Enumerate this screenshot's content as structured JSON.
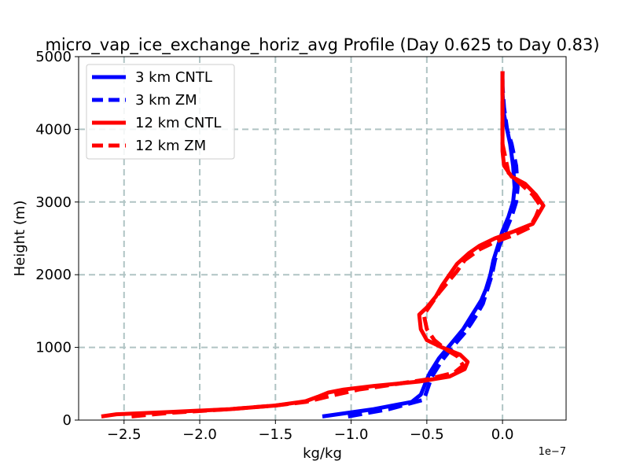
{
  "chart_data": {
    "type": "line",
    "title": "micro_vap_ice_exchange_horiz_avg Profile (Day 0.625 to Day 0.83)",
    "xlabel": "kg/kg",
    "ylabel": "Height (m)",
    "x_offset_label": "1e−7",
    "xlim": [
      -2.8,
      0.42
    ],
    "ylim": [
      0,
      5000
    ],
    "x_ticks": [
      -2.5,
      -2.0,
      -1.5,
      -1.0,
      -0.5,
      0.0
    ],
    "x_tick_labels": [
      "−2.5",
      "−2.0",
      "−1.5",
      "−1.0",
      "−0.5",
      "0.0"
    ],
    "y_ticks": [
      0,
      1000,
      2000,
      3000,
      4000,
      5000
    ],
    "y_tick_labels": [
      "0",
      "1000",
      "2000",
      "3000",
      "4000",
      "5000"
    ],
    "grid": true,
    "legend_position": "upper-left",
    "series": [
      {
        "name": "3 km CNTL",
        "color": "#0000ff",
        "dash": "solid",
        "points": [
          [
            -1.19,
            50
          ],
          [
            -0.85,
            150
          ],
          [
            -0.6,
            250
          ],
          [
            -0.54,
            350
          ],
          [
            -0.52,
            450
          ],
          [
            -0.5,
            560
          ],
          [
            -0.48,
            650
          ],
          [
            -0.45,
            750
          ],
          [
            -0.42,
            850
          ],
          [
            -0.38,
            950
          ],
          [
            -0.34,
            1050
          ],
          [
            -0.3,
            1150
          ],
          [
            -0.26,
            1250
          ],
          [
            -0.23,
            1350
          ],
          [
            -0.2,
            1450
          ],
          [
            -0.17,
            1550
          ],
          [
            -0.14,
            1650
          ],
          [
            -0.11,
            1800
          ],
          [
            -0.08,
            2000
          ],
          [
            -0.06,
            2200
          ],
          [
            -0.03,
            2400
          ],
          [
            0.0,
            2600
          ],
          [
            0.04,
            2800
          ],
          [
            0.07,
            3000
          ],
          [
            0.08,
            3200
          ],
          [
            0.07,
            3500
          ],
          [
            0.05,
            3800
          ],
          [
            0.03,
            4000
          ],
          [
            0.01,
            4200
          ],
          [
            0.0,
            4500
          ],
          [
            0.0,
            4800
          ]
        ]
      },
      {
        "name": "3 km ZM",
        "color": "#0000ff",
        "dash": "dashed",
        "points": [
          [
            -1.02,
            50
          ],
          [
            -0.75,
            150
          ],
          [
            -0.52,
            280
          ],
          [
            -0.5,
            400
          ],
          [
            -0.48,
            520
          ],
          [
            -0.46,
            620
          ],
          [
            -0.43,
            720
          ],
          [
            -0.4,
            820
          ],
          [
            -0.35,
            950
          ],
          [
            -0.3,
            1080
          ],
          [
            -0.25,
            1200
          ],
          [
            -0.21,
            1320
          ],
          [
            -0.17,
            1450
          ],
          [
            -0.13,
            1600
          ],
          [
            -0.1,
            1800
          ],
          [
            -0.07,
            2000
          ],
          [
            -0.05,
            2200
          ],
          [
            -0.02,
            2400
          ],
          [
            0.02,
            2600
          ],
          [
            0.06,
            2800
          ],
          [
            0.09,
            3000
          ],
          [
            0.1,
            3200
          ],
          [
            0.09,
            3500
          ],
          [
            0.06,
            3800
          ],
          [
            0.03,
            4000
          ],
          [
            0.01,
            4300
          ],
          [
            0.0,
            4600
          ],
          [
            0.0,
            4800
          ]
        ]
      },
      {
        "name": "12 km CNTL",
        "color": "#ff0000",
        "dash": "solid",
        "points": [
          [
            -2.65,
            50
          ],
          [
            -2.55,
            80
          ],
          [
            -2.2,
            110
          ],
          [
            -1.8,
            150
          ],
          [
            -1.5,
            200
          ],
          [
            -1.3,
            260
          ],
          [
            -1.22,
            320
          ],
          [
            -1.15,
            380
          ],
          [
            -1.05,
            420
          ],
          [
            -0.85,
            470
          ],
          [
            -0.55,
            530
          ],
          [
            -0.35,
            600
          ],
          [
            -0.25,
            700
          ],
          [
            -0.23,
            800
          ],
          [
            -0.28,
            900
          ],
          [
            -0.4,
            1000
          ],
          [
            -0.5,
            1100
          ],
          [
            -0.54,
            1250
          ],
          [
            -0.55,
            1450
          ],
          [
            -0.5,
            1550
          ],
          [
            -0.44,
            1700
          ],
          [
            -0.4,
            1850
          ],
          [
            -0.35,
            2000
          ],
          [
            -0.3,
            2150
          ],
          [
            -0.22,
            2300
          ],
          [
            -0.15,
            2400
          ],
          [
            -0.05,
            2500
          ],
          [
            0.08,
            2600
          ],
          [
            0.2,
            2700
          ],
          [
            0.27,
            2950
          ],
          [
            0.22,
            3100
          ],
          [
            0.15,
            3250
          ],
          [
            0.06,
            3350
          ],
          [
            0.01,
            3500
          ],
          [
            0.0,
            3700
          ],
          [
            0.0,
            4000
          ],
          [
            0.0,
            4400
          ],
          [
            0.0,
            4800
          ]
        ]
      },
      {
        "name": "12 km ZM",
        "color": "#ff0000",
        "dash": "dashed",
        "points": [
          [
            -2.45,
            50
          ],
          [
            -2.2,
            100
          ],
          [
            -1.8,
            150
          ],
          [
            -1.5,
            200
          ],
          [
            -1.3,
            250
          ],
          [
            -1.1,
            350
          ],
          [
            -0.95,
            420
          ],
          [
            -0.75,
            480
          ],
          [
            -0.5,
            560
          ],
          [
            -0.32,
            650
          ],
          [
            -0.26,
            750
          ],
          [
            -0.3,
            880
          ],
          [
            -0.38,
            980
          ],
          [
            -0.45,
            1100
          ],
          [
            -0.5,
            1250
          ],
          [
            -0.52,
            1450
          ],
          [
            -0.47,
            1600
          ],
          [
            -0.42,
            1750
          ],
          [
            -0.36,
            1900
          ],
          [
            -0.3,
            2050
          ],
          [
            -0.25,
            2200
          ],
          [
            -0.15,
            2350
          ],
          [
            -0.05,
            2450
          ],
          [
            0.08,
            2550
          ],
          [
            0.18,
            2650
          ],
          [
            0.22,
            2800
          ],
          [
            0.25,
            2950
          ],
          [
            0.2,
            3100
          ],
          [
            0.12,
            3250
          ],
          [
            0.04,
            3400
          ],
          [
            0.02,
            3600
          ],
          [
            0.0,
            3800
          ],
          [
            0.0,
            4200
          ],
          [
            0.0,
            4800
          ]
        ]
      }
    ]
  }
}
